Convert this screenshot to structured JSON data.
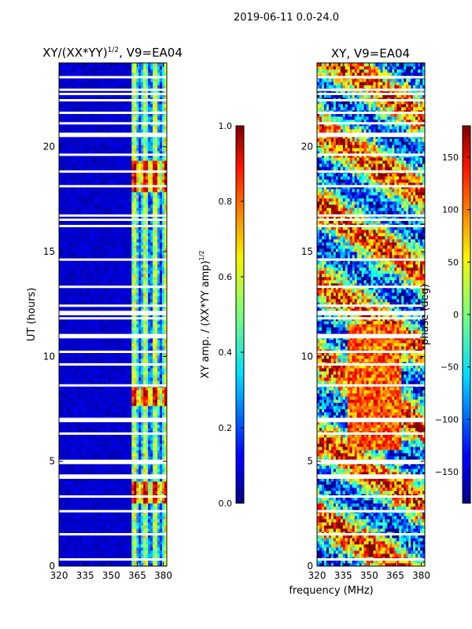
{
  "suptitle": "2019-06-11 0.0-24.0",
  "shared_xlabel": "frequency (MHz)",
  "chart_data": [
    {
      "type": "heatmap",
      "title": "XY/(XX*YY)1/2, V9=EA04",
      "title_main": "XY/(XX*YY)",
      "title_sup": "1/2",
      "title_tail": ", V9=EA04",
      "xlabel": "frequency (MHz)",
      "ylabel": "UT (hours)",
      "xlim": [
        320,
        382
      ],
      "ylim": [
        0,
        24
      ],
      "xticks": [
        320,
        335,
        350,
        365,
        380
      ],
      "yticks": [
        0,
        5,
        10,
        15,
        20
      ],
      "colorbar": {
        "label": "XY amp. / (XX*YY amp)1/2",
        "label_main": "XY amp. / (XX*YY amp)",
        "label_sup": "1/2",
        "vmin": 0.0,
        "vmax": 1.0,
        "ticks": [
          "0.0",
          "0.2",
          "0.4",
          "0.6",
          "0.8",
          "1.0"
        ],
        "tick_values": [
          0.0,
          0.2,
          0.4,
          0.6,
          0.8,
          1.0
        ]
      },
      "colormap": "jet"
    },
    {
      "type": "heatmap",
      "title": "XY, V9=EA04",
      "xlabel": "",
      "ylabel": "",
      "xlim": [
        320,
        382
      ],
      "ylim": [
        0,
        24
      ],
      "xticks": [
        320,
        335,
        350,
        365,
        380
      ],
      "yticks": [
        0,
        5,
        10,
        15,
        20
      ],
      "colorbar": {
        "label": "phase (deg)",
        "vmin": -180,
        "vmax": 180,
        "ticks": [
          "−150",
          "−100",
          "−50",
          "0",
          "50",
          "100",
          "150"
        ],
        "tick_values": [
          -150,
          -100,
          -50,
          0,
          50,
          100,
          150
        ]
      },
      "colormap": "jet"
    }
  ],
  "flagged_gaps_ut": [
    0.3,
    1.5,
    2.6,
    3.3,
    4.2,
    4.3,
    4.9,
    5.0,
    6.3,
    6.9,
    7.0,
    8.6,
    9.6,
    10.2,
    10.9,
    11.0,
    11.8,
    12.0,
    12.1,
    12.4,
    13.3,
    14.6,
    16.2,
    16.5,
    16.7,
    18.1,
    18.8,
    19.6,
    20.5,
    20.6,
    21.1,
    21.6,
    22.2,
    22.5,
    22.7,
    23.3
  ]
}
